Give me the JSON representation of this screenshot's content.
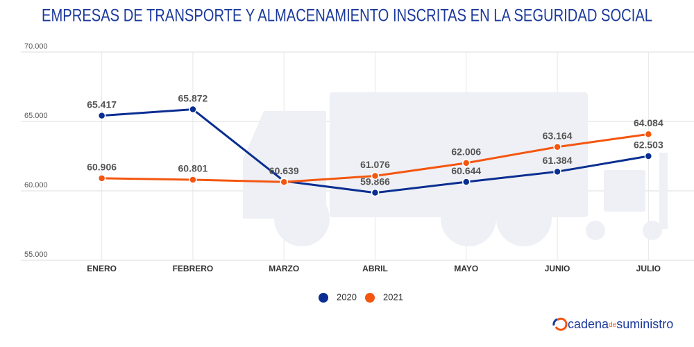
{
  "chart_data": {
    "type": "line",
    "title": "EMPRESAS DE TRANSPORTE Y ALMACENAMIENTO INSCRITAS EN LA SEGURIDAD SOCIAL",
    "categories": [
      "ENERO",
      "FEBRERO",
      "MARZO",
      "ABRIL",
      "MAYO",
      "JUNIO",
      "JULIO"
    ],
    "series": [
      {
        "name": "2020",
        "color": "#0a2e91",
        "values": [
          65417,
          65872,
          60700,
          59866,
          60644,
          61384,
          62503
        ],
        "value_labels": [
          "65.417",
          "65.872",
          null,
          "59.866",
          "60.644",
          "61.384",
          "62.503"
        ]
      },
      {
        "name": "2021",
        "color": "#f4560f",
        "values": [
          60906,
          60801,
          60639,
          61076,
          62006,
          63164,
          64084
        ],
        "value_labels": [
          "60.906",
          "60.801",
          "60.639",
          "61.076",
          "62.006",
          "63.164",
          "64.084"
        ]
      }
    ],
    "ylim": [
      55000,
      70000
    ],
    "yticks": [
      {
        "value": 55000,
        "label": "55.000"
      },
      {
        "value": 60000,
        "label": "60.000"
      },
      {
        "value": 65000,
        "label": "65.000"
      },
      {
        "value": 70000,
        "label": "70.000"
      }
    ],
    "grid": true
  },
  "brand": {
    "parts": [
      "cadena",
      "de",
      "suministro"
    ]
  }
}
